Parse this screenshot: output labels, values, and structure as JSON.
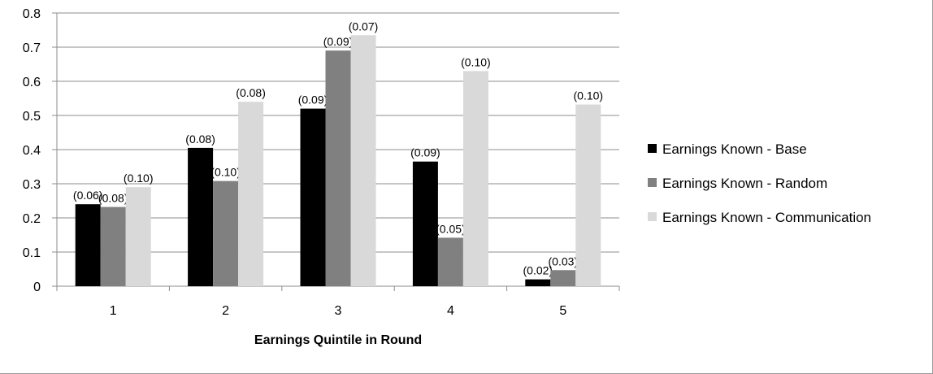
{
  "chart_data": {
    "type": "bar",
    "categories": [
      "1",
      "2",
      "3",
      "4",
      "5"
    ],
    "xlabel": "Earnings Quintile in Round",
    "ylabel": "",
    "ylim": [
      0,
      0.8
    ],
    "yticks": [
      "0",
      "0.1",
      "0.2",
      "0.3",
      "0.4",
      "0.5",
      "0.6",
      "0.7",
      "0.8"
    ],
    "grid": true,
    "legend_position": "right",
    "series": [
      {
        "name": "Earnings Known - Base",
        "color": "#000000",
        "values": [
          0.24,
          0.405,
          0.52,
          0.365,
          0.02
        ],
        "labels": [
          "(0.06)",
          "(0.08)",
          "(0.09)",
          "(0.09)",
          "(0.02)"
        ]
      },
      {
        "name": "Earnings Known - Random",
        "color": "#808080",
        "values": [
          0.232,
          0.308,
          0.69,
          0.142,
          0.047
        ],
        "labels": [
          "(0.08)",
          "(0.10)",
          "(0.09)",
          "(0.05)",
          "(0.03)"
        ]
      },
      {
        "name": "Earnings Known - Communication",
        "color": "#d9d9d9",
        "values": [
          0.29,
          0.54,
          0.735,
          0.63,
          0.532
        ],
        "labels": [
          "(0.10)",
          "(0.08)",
          "(0.07)",
          "(0.10)",
          "(0.10)"
        ]
      }
    ]
  }
}
